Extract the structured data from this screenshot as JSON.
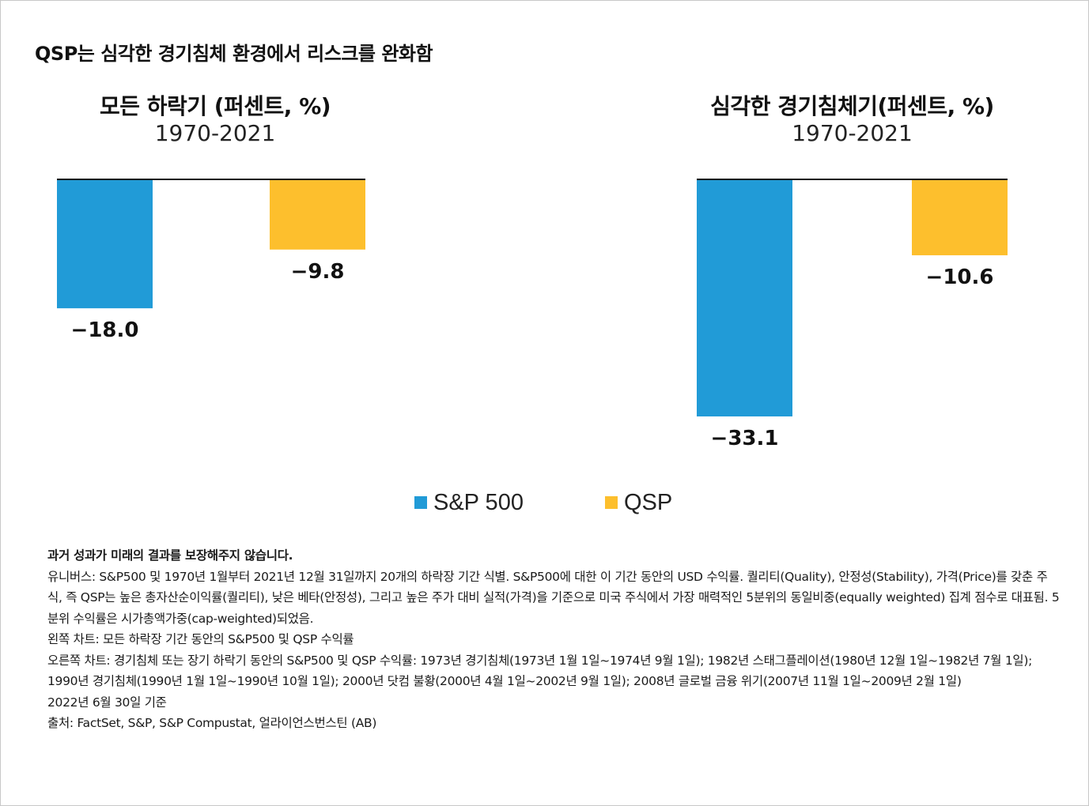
{
  "main_title": "QSP는 심각한 경기침체 환경에서 리스크를 완화함",
  "chart_data": [
    {
      "type": "bar",
      "title": "모든 하락기 (퍼센트, %)",
      "subtitle": "1970-2021",
      "categories": [
        "S&P 500",
        "QSP"
      ],
      "values": [
        -18.0,
        -9.8
      ],
      "labels": [
        "−18.0",
        "−9.8"
      ],
      "ylim": [
        -33.1,
        0
      ],
      "grid": false
    },
    {
      "type": "bar",
      "title": "심각한 경기침체기(퍼센트, %)",
      "subtitle": "1970-2021",
      "categories": [
        "S&P 500",
        "QSP"
      ],
      "values": [
        -33.1,
        -10.6
      ],
      "labels": [
        "−33.1",
        "−10.6"
      ],
      "ylim": [
        -33.1,
        0
      ],
      "grid": false
    }
  ],
  "legend": {
    "placement": "bottom",
    "items": [
      {
        "label": "S&P 500",
        "color": "#219BD7"
      },
      {
        "label": "QSP",
        "color": "#FDBF2D"
      }
    ]
  },
  "colors": {
    "sp500": "#219BD7",
    "qsp": "#FDBF2D",
    "baseline": "#111111"
  },
  "notes": [
    "과거 성과가 미래의 결과를 보장해주지 않습니다.",
    "유니버스: S&P500 및 1970년 1월부터 2021년 12월 31일까지 20개의 하락장 기간 식별. S&P500에 대한 이 기간 동안의 USD 수익률. 퀄리티(Quality), 안정성(Stability), 가격(Price)를 갖춘 주식, 즉 QSP는 높은 총자산순이익률(퀄리티), 낮은 베타(안정성), 그리고 높은 주가 대비 실적(가격)을 기준으로 미국 주식에서 가장 매력적인 5분위의 동일비중(equally weighted) 집계 점수로 대표됨. 5분위 수익률은 시가총액가중(cap-weighted)되었음.",
    "왼쪽 차트: 모든 하락장 기간 동안의 S&P500 및 QSP 수익률",
    "오른쪽 차트: 경기침체 또는 장기 하락기 동안의 S&P500 및 QSP 수익률: 1973년 경기침체(1973년 1월 1일~1974년 9월 1일); 1982년 스태그플레이션(1980년 12월 1일~1982년 7월 1일); 1990년 경기침체(1990년 1월 1일~1990년 10월 1일); 2000년 닷컴 불황(2000년 4월 1일~2002년 9월 1일); 2008년 글로벌 금융 위기(2007년 11월 1일~2009년 2월 1일)",
    "2022년 6월 30일 기준",
    "출처: FactSet, S&P, S&P Compustat, 얼라이언스번스틴 (AB)"
  ]
}
